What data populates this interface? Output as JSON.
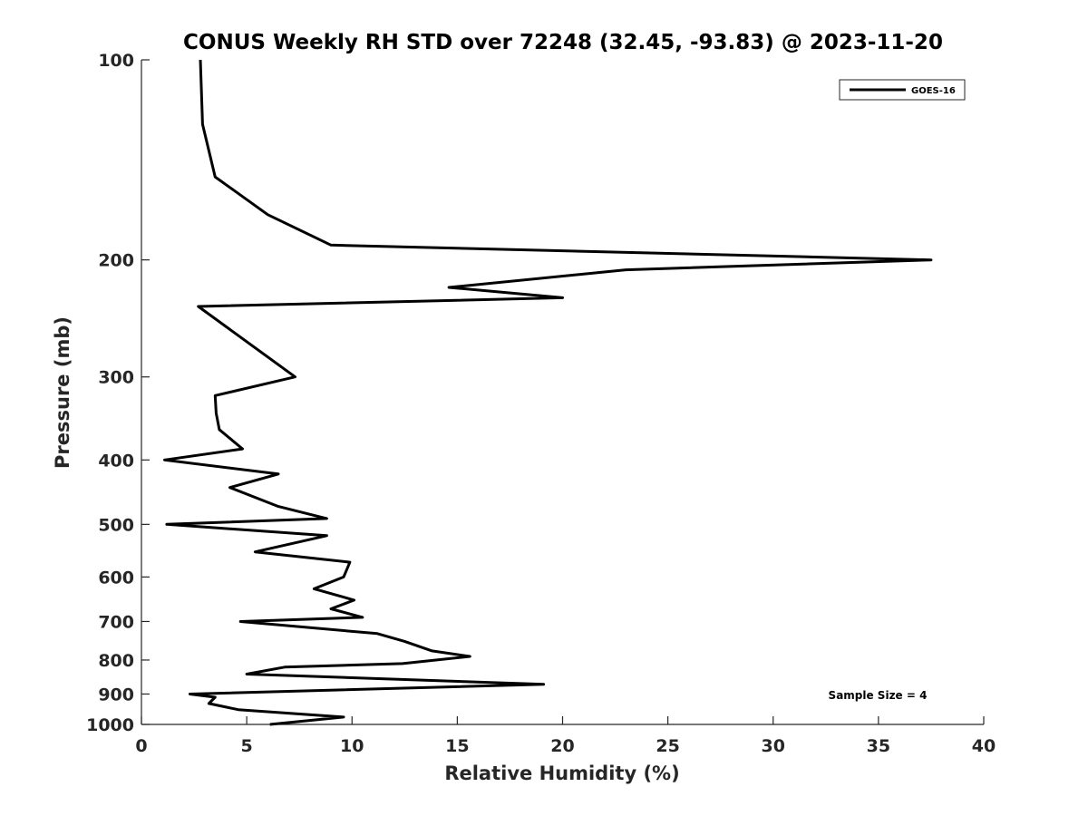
{
  "chart_data": {
    "type": "line",
    "title": "CONUS Weekly RH STD over 72248 (32.45, -93.83) @ 2023-11-20",
    "xlabel": "Relative Humidity (%)",
    "ylabel": "Pressure (mb)",
    "xlim": [
      0,
      40
    ],
    "ylim": [
      100,
      1000
    ],
    "y_scale": "log",
    "y_reversed": true,
    "x_ticks": [
      "0",
      "5",
      "10",
      "15",
      "20",
      "25",
      "30",
      "35",
      "40"
    ],
    "y_ticks": [
      "100",
      "200",
      "300",
      "400",
      "500",
      "600",
      "700",
      "800",
      "900",
      "1000"
    ],
    "grid": false,
    "legend_position": "top-right",
    "annotation": "Sample Size = 4",
    "series": [
      {
        "name": "GOES-16",
        "color": "#000000",
        "x": [
          2.8,
          2.9,
          3.5,
          6.0,
          9.0,
          37.5,
          23.0,
          14.6,
          20.0,
          2.7,
          7.3,
          3.5,
          3.55,
          3.7,
          4.8,
          1.1,
          6.5,
          4.2,
          6.5,
          8.8,
          1.2,
          8.8,
          5.4,
          9.9,
          9.6,
          8.2,
          10.1,
          9.0,
          10.5,
          4.7,
          11.2,
          12.5,
          13.8,
          15.6,
          12.4,
          6.8,
          5.0,
          19.1,
          2.3,
          3.5,
          3.2,
          4.6,
          9.6,
          6.1
        ],
        "y": [
          100,
          125,
          150,
          171,
          190,
          200,
          207,
          220,
          228,
          235,
          300,
          320,
          340,
          360,
          385,
          400,
          420,
          440,
          470,
          490,
          500,
          520,
          550,
          570,
          600,
          625,
          650,
          670,
          690,
          700,
          730,
          750,
          775,
          790,
          810,
          820,
          840,
          870,
          900,
          910,
          930,
          950,
          975,
          1000
        ]
      }
    ]
  }
}
